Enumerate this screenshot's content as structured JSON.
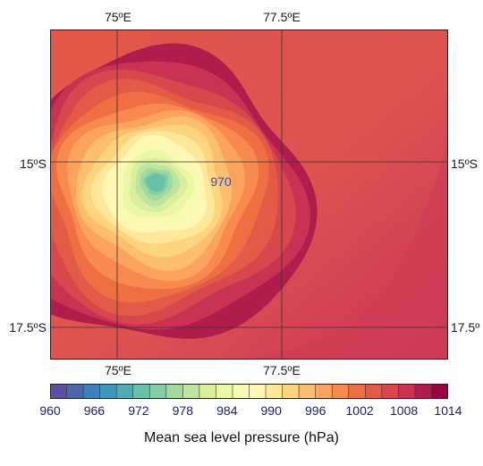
{
  "map": {
    "lon_labels_top": [
      "75ºE",
      "77.5ºE"
    ],
    "lon_labels_bottom": [
      "75ºE",
      "77.5ºE"
    ],
    "lat_labels_left": [
      "15ºS",
      "17.5ºS"
    ],
    "lat_labels_right": [
      "15ºS",
      "17.5º"
    ],
    "lon_range": [
      74.0,
      80.0
    ],
    "lat_range": [
      -13.0,
      -18.0
    ],
    "gridlines": {
      "lons": [
        75.0,
        77.5
      ],
      "lats": [
        -15.0,
        -17.5
      ]
    },
    "center_label": "970",
    "center": {
      "lon": 75.6,
      "lat": -15.3
    },
    "min_pressure": 970,
    "ambient_pressure": 1006,
    "field_colors": {
      "outer": "#dd5350",
      "southeast": "#cc3b58",
      "ring": "#ee6b40"
    }
  },
  "colorbar": {
    "title": "Mean sea level pressure (hPa)",
    "tick_labels": [
      "960",
      "966",
      "972",
      "978",
      "984",
      "990",
      "996",
      "1002",
      "1008",
      "1014"
    ],
    "min": 960,
    "max": 1014,
    "step": 2,
    "colors": [
      "#5e4fa2",
      "#4c66ad",
      "#3c81b9",
      "#3b97bb",
      "#4caeb2",
      "#66c2a5",
      "#83cea4",
      "#a1da9e",
      "#bee5a0",
      "#d8ef9b",
      "#ebf7a5",
      "#f7fbb1",
      "#fff8b4",
      "#fee99a",
      "#fed57f",
      "#fdbe6f",
      "#fca35e",
      "#f88a4f",
      "#ef6e42",
      "#e35a46",
      "#d8474c",
      "#c93253",
      "#b01d4c",
      "#9e0142"
    ]
  }
}
